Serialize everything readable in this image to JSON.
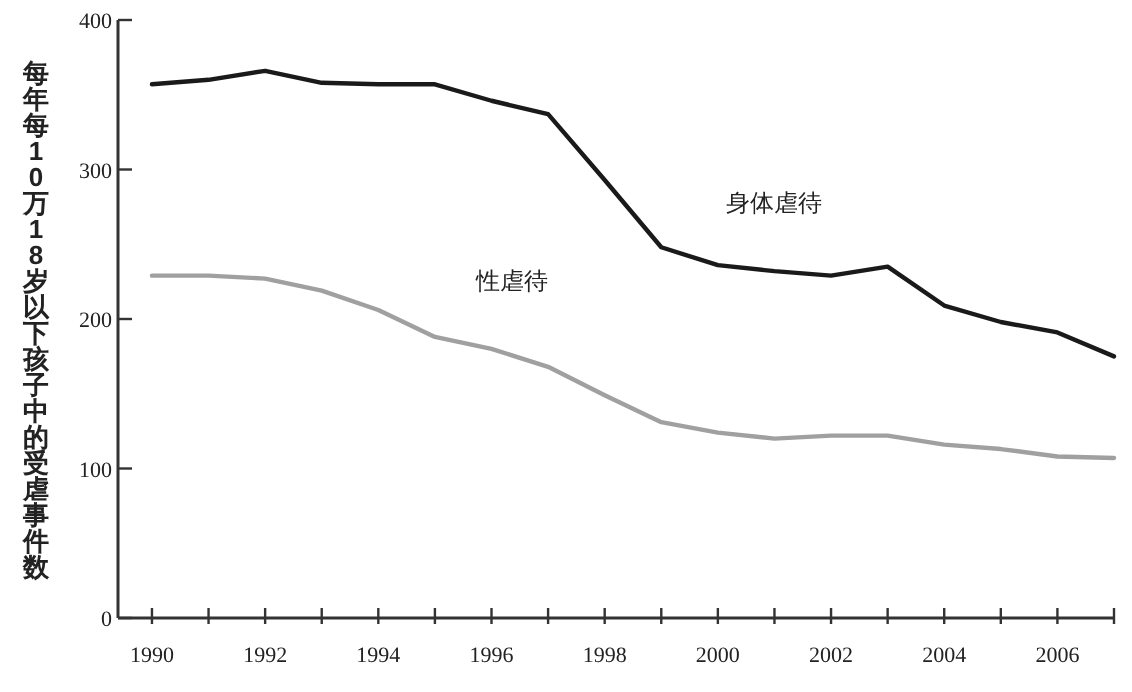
{
  "chart_data": {
    "type": "line",
    "ylabel": "每年每10万18岁以下孩子中的受虐事件数",
    "x": [
      1990,
      1991,
      1992,
      1993,
      1994,
      1995,
      1996,
      1997,
      1998,
      1999,
      2000,
      2001,
      2002,
      2003,
      2004,
      2005,
      2006,
      2007
    ],
    "series": [
      {
        "name": "身体虐待",
        "color": "#1a1a1a",
        "values": [
          357,
          360,
          366,
          358,
          357,
          357,
          346,
          337,
          293,
          248,
          236,
          232,
          229,
          235,
          209,
          198,
          191,
          175
        ]
      },
      {
        "name": "性虐待",
        "color": "#a0a0a0",
        "values": [
          229,
          229,
          227,
          219,
          206,
          188,
          180,
          168,
          149,
          131,
          124,
          120,
          122,
          122,
          116,
          113,
          108,
          107
        ]
      }
    ],
    "xlim": [
      1989.4,
      2007
    ],
    "xticks": [
      1990,
      {
        "value": 1991,
        "label": null
      },
      1992,
      {
        "value": 1993,
        "label": null
      },
      1994,
      {
        "value": 1995,
        "label": null
      },
      1996,
      {
        "value": 1997,
        "label": null
      },
      1998,
      {
        "value": 1999,
        "label": null
      },
      2000,
      {
        "value": 2001,
        "label": null
      },
      2002,
      {
        "value": 2003,
        "label": null
      },
      2004,
      {
        "value": 2005,
        "label": null
      },
      2006,
      {
        "value": 2007,
        "label": null
      }
    ],
    "ylim": [
      0,
      400
    ],
    "yticks": [
      0,
      100,
      200,
      300,
      400
    ],
    "grid": false,
    "legend": false,
    "marker": "none",
    "line_style": "solid"
  }
}
